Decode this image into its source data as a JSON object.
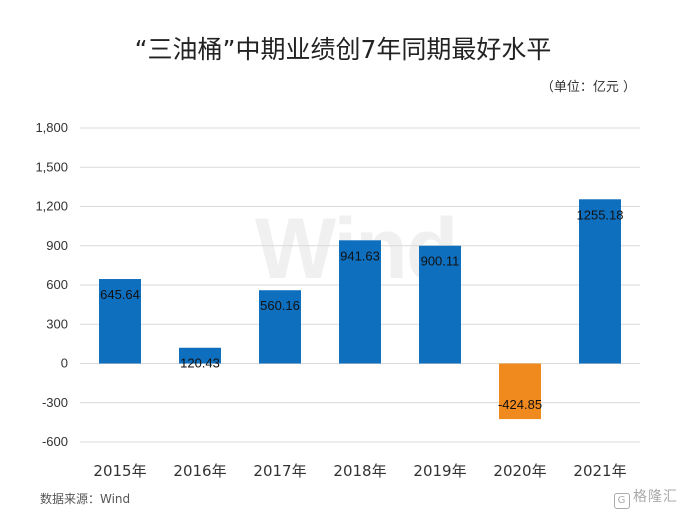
{
  "chart_data": {
    "type": "bar",
    "title": "“三油桶”中期业绩创7年同期最好水平",
    "unit_label": "（单位：亿元 ）",
    "categories": [
      "2015年",
      "2016年",
      "2017年",
      "2018年",
      "2019年",
      "2020年",
      "2021年"
    ],
    "values": [
      645.64,
      120.43,
      560.16,
      941.63,
      900.11,
      -424.85,
      1255.18
    ],
    "value_labels": [
      "645.64",
      "120.43",
      "560.16",
      "941.63",
      "900.11",
      "-424.85",
      "1255.18"
    ],
    "ylim": [
      -600,
      1800
    ],
    "yticks": [
      1800,
      1500,
      1200,
      900,
      600,
      300,
      0,
      -300,
      -600
    ],
    "ytick_labels": [
      "1,800",
      "1,500",
      "1,200",
      "900",
      "600",
      "300",
      "0",
      "-300",
      "-600"
    ],
    "grid": true,
    "colors": {
      "positive": "#0f6fbf",
      "negative": "#f08a1e",
      "grid": "#d9d9d9"
    },
    "source": "数据来源：Wind",
    "watermark": "Wind",
    "brand": "格隆汇"
  }
}
